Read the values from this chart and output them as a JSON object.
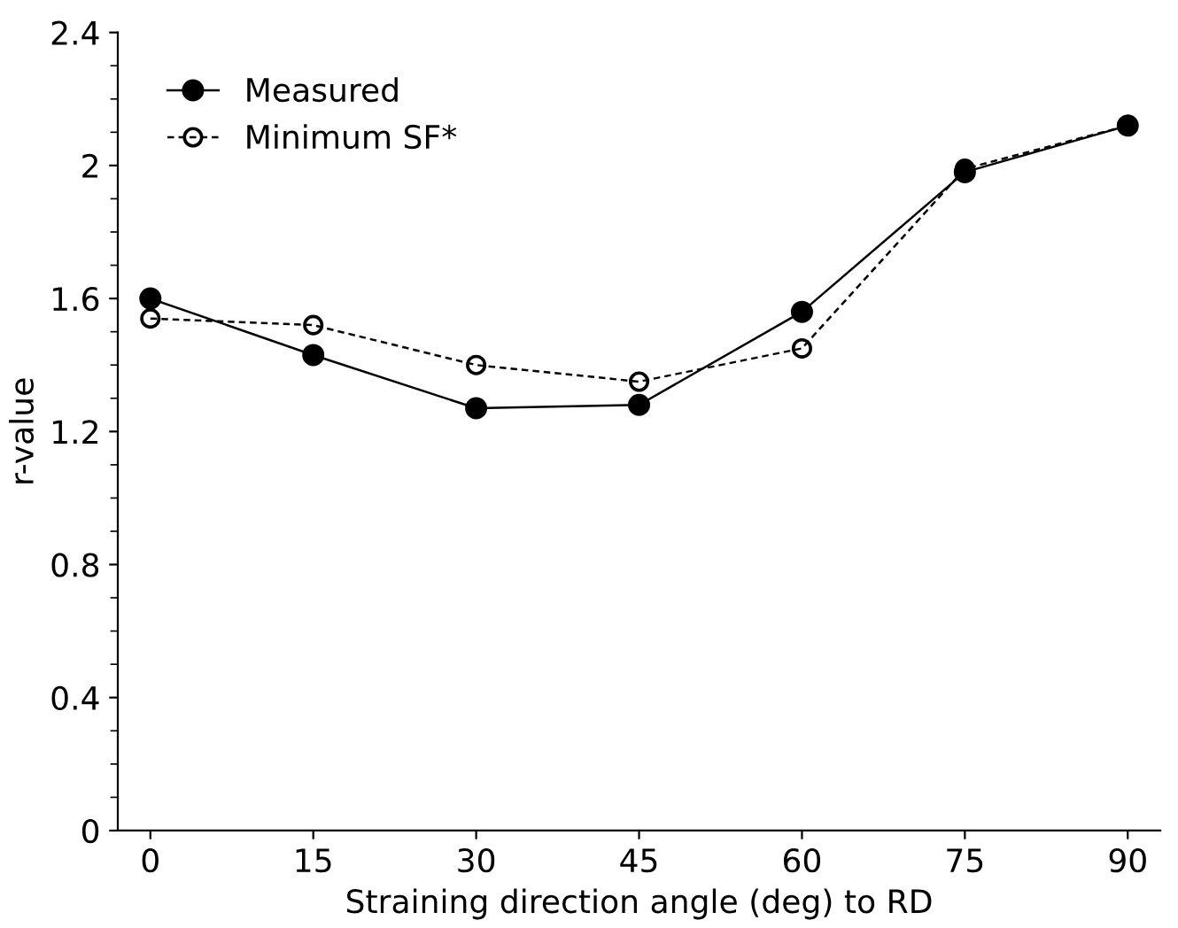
{
  "chart_data": {
    "type": "line",
    "xlabel": "Straining direction angle (deg) to RD",
    "ylabel": "r-value",
    "x": [
      0,
      15,
      30,
      45,
      60,
      75,
      90
    ],
    "series": [
      {
        "name": "Measured",
        "color": "#000000",
        "values": [
          1.6,
          1.43,
          1.27,
          1.28,
          1.56,
          1.98,
          2.12
        ],
        "marker": "circle",
        "line_style": "solid"
      },
      {
        "name": "Minimum SF*",
        "color": "#000000",
        "values": [
          1.54,
          1.52,
          1.4,
          1.35,
          1.45,
          1.99,
          2.12
        ],
        "marker": "circle",
        "line_style": "dashed"
      }
    ],
    "xlim": [
      -3,
      93
    ],
    "ylim": [
      0,
      2.4
    ],
    "xticks": [
      0,
      15,
      30,
      45,
      60,
      75,
      90
    ],
    "yticks": [
      {
        "value": 0,
        "label": "0"
      },
      {
        "value": 0.4,
        "label": "0.4"
      },
      {
        "value": 0.8,
        "label": "0.8"
      },
      {
        "value": 1.2,
        "label": "1.2"
      },
      {
        "value": 1.6,
        "label": "1.6"
      },
      {
        "value": 2,
        "label": "2"
      },
      {
        "value": 2.4,
        "label": "2.4"
      }
    ],
    "grid": false,
    "legend": "top left"
  }
}
